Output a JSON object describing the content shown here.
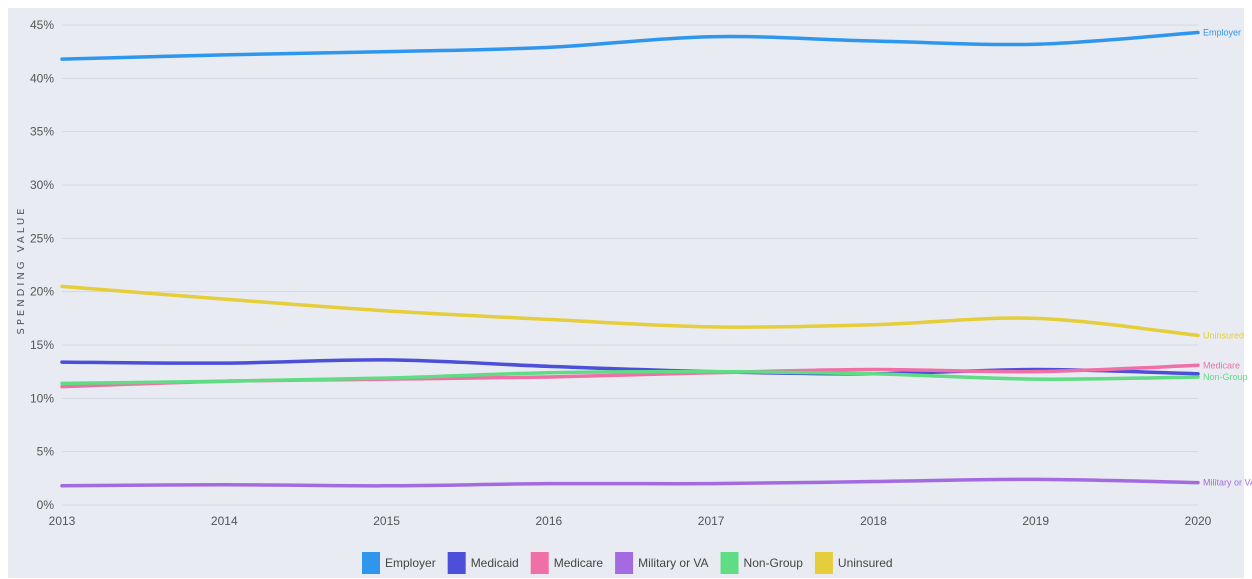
{
  "chart_data": {
    "type": "line",
    "title": "",
    "xlabel": "",
    "ylabel": "SPENDING VALUE",
    "x": [
      "2013",
      "2014",
      "2015",
      "2016",
      "2017",
      "2018",
      "2019",
      "2020"
    ],
    "ylim": [
      0,
      45
    ],
    "y_ticks": [
      "0%",
      "5%",
      "10%",
      "15%",
      "20%",
      "25%",
      "30%",
      "35%",
      "40%",
      "45%"
    ],
    "grid": true,
    "legend_position": "bottom",
    "series": [
      {
        "name": "Employer",
        "color": "#2f96ee",
        "values": [
          41.8,
          42.2,
          42.5,
          42.9,
          43.9,
          43.5,
          43.2,
          44.3
        ]
      },
      {
        "name": "Medicaid",
        "color": "#4c4fd8",
        "values": [
          13.4,
          13.3,
          13.6,
          13.0,
          12.5,
          12.3,
          12.7,
          12.3
        ]
      },
      {
        "name": "Medicare",
        "color": "#f06fa6",
        "values": [
          11.1,
          11.6,
          11.8,
          12.0,
          12.4,
          12.7,
          12.5,
          13.1
        ]
      },
      {
        "name": "Military or VA",
        "color": "#a46be0",
        "values": [
          1.8,
          1.9,
          1.8,
          2.0,
          2.0,
          2.2,
          2.4,
          2.1
        ]
      },
      {
        "name": "Non-Group",
        "color": "#5fdc84",
        "values": [
          11.4,
          11.6,
          11.9,
          12.4,
          12.5,
          12.3,
          11.8,
          12.0
        ]
      },
      {
        "name": "Uninsured",
        "color": "#e6cd3a",
        "values": [
          20.5,
          19.3,
          18.2,
          17.4,
          16.7,
          16.9,
          17.5,
          15.9
        ]
      }
    ],
    "end_labels": [
      "Employer",
      "Uninsured",
      "Medicare",
      "Non-Group",
      "Military or VA"
    ]
  }
}
